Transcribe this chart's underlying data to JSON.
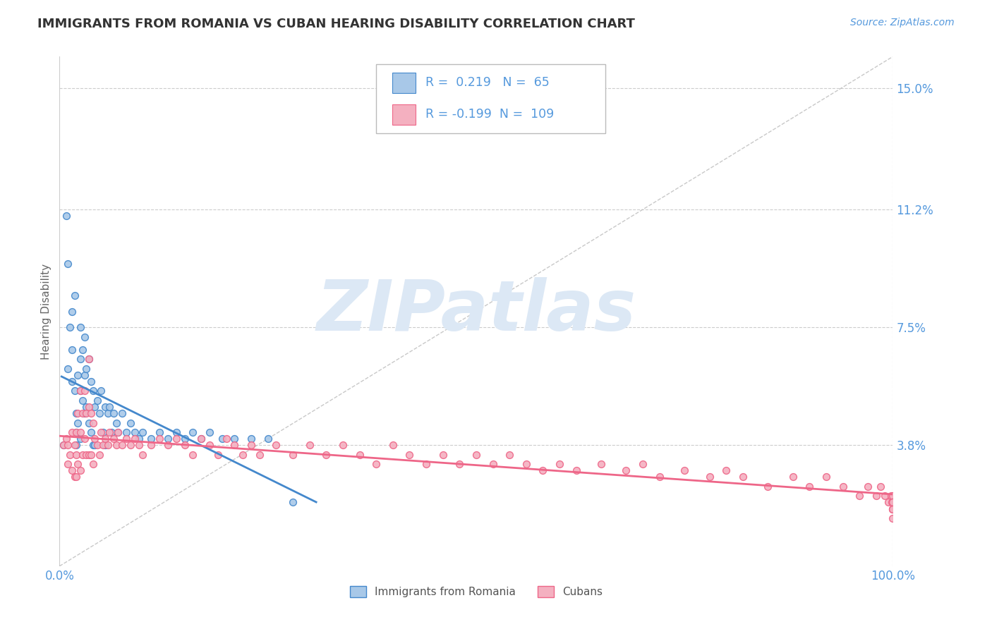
{
  "title": "IMMIGRANTS FROM ROMANIA VS CUBAN HEARING DISABILITY CORRELATION CHART",
  "source_text": "Source: ZipAtlas.com",
  "ylabel": "Hearing Disability",
  "legend_label1": "Immigrants from Romania",
  "legend_label2": "Cubans",
  "R1": 0.219,
  "N1": 65,
  "R2": -0.199,
  "N2": 109,
  "xlim": [
    0.0,
    1.0
  ],
  "ylim": [
    0.0,
    0.16
  ],
  "xticks": [
    0.0,
    1.0
  ],
  "xticklabels": [
    "0.0%",
    "100.0%"
  ],
  "yticks": [
    0.0,
    0.038,
    0.075,
    0.112,
    0.15
  ],
  "yticklabels": [
    "",
    "3.8%",
    "7.5%",
    "11.2%",
    "15.0%"
  ],
  "color1": "#a8c8e8",
  "color2": "#f4b0c0",
  "trendline1_color": "#4488cc",
  "trendline2_color": "#ee6688",
  "scatter1_edge": "#4488cc",
  "scatter2_edge": "#ee6688",
  "background_color": "#ffffff",
  "grid_color": "#cccccc",
  "title_color": "#333333",
  "axis_color": "#5599dd",
  "watermark_color": "#dce8f5",
  "watermark_text": "ZIPatlas",
  "title_fontsize": 13,
  "scatter1_x": [
    0.005,
    0.008,
    0.01,
    0.01,
    0.012,
    0.015,
    0.015,
    0.015,
    0.018,
    0.018,
    0.02,
    0.02,
    0.02,
    0.022,
    0.022,
    0.025,
    0.025,
    0.025,
    0.025,
    0.028,
    0.028,
    0.03,
    0.03,
    0.03,
    0.032,
    0.032,
    0.035,
    0.035,
    0.038,
    0.038,
    0.04,
    0.04,
    0.042,
    0.042,
    0.045,
    0.048,
    0.05,
    0.052,
    0.055,
    0.055,
    0.058,
    0.06,
    0.062,
    0.065,
    0.068,
    0.07,
    0.075,
    0.08,
    0.085,
    0.09,
    0.095,
    0.1,
    0.11,
    0.12,
    0.13,
    0.14,
    0.15,
    0.16,
    0.17,
    0.18,
    0.195,
    0.21,
    0.23,
    0.25,
    0.28
  ],
  "scatter1_y": [
    0.038,
    0.11,
    0.095,
    0.062,
    0.075,
    0.08,
    0.068,
    0.058,
    0.085,
    0.055,
    0.048,
    0.042,
    0.038,
    0.06,
    0.045,
    0.075,
    0.065,
    0.055,
    0.04,
    0.068,
    0.052,
    0.072,
    0.06,
    0.048,
    0.062,
    0.05,
    0.065,
    0.045,
    0.058,
    0.042,
    0.055,
    0.038,
    0.05,
    0.038,
    0.052,
    0.048,
    0.055,
    0.042,
    0.05,
    0.038,
    0.048,
    0.05,
    0.042,
    0.048,
    0.045,
    0.042,
    0.048,
    0.042,
    0.045,
    0.042,
    0.04,
    0.042,
    0.04,
    0.042,
    0.04,
    0.042,
    0.04,
    0.042,
    0.04,
    0.042,
    0.04,
    0.04,
    0.04,
    0.04,
    0.02
  ],
  "scatter2_x": [
    0.005,
    0.008,
    0.01,
    0.01,
    0.012,
    0.015,
    0.015,
    0.018,
    0.018,
    0.02,
    0.02,
    0.02,
    0.022,
    0.022,
    0.025,
    0.025,
    0.025,
    0.028,
    0.028,
    0.03,
    0.03,
    0.032,
    0.032,
    0.035,
    0.035,
    0.035,
    0.038,
    0.038,
    0.04,
    0.04,
    0.042,
    0.045,
    0.048,
    0.05,
    0.052,
    0.055,
    0.058,
    0.06,
    0.065,
    0.068,
    0.07,
    0.075,
    0.08,
    0.085,
    0.09,
    0.095,
    0.1,
    0.11,
    0.12,
    0.13,
    0.14,
    0.15,
    0.16,
    0.17,
    0.18,
    0.19,
    0.2,
    0.21,
    0.22,
    0.23,
    0.24,
    0.26,
    0.28,
    0.3,
    0.32,
    0.34,
    0.36,
    0.38,
    0.4,
    0.42,
    0.44,
    0.46,
    0.48,
    0.5,
    0.52,
    0.54,
    0.56,
    0.58,
    0.6,
    0.62,
    0.65,
    0.68,
    0.7,
    0.72,
    0.75,
    0.78,
    0.8,
    0.82,
    0.85,
    0.88,
    0.9,
    0.92,
    0.94,
    0.96,
    0.97,
    0.98,
    0.985,
    0.99,
    0.995,
    0.998,
    0.999,
    1.0,
    1.0,
    1.0,
    1.0,
    1.0,
    1.0,
    1.0,
    1.0
  ],
  "scatter2_y": [
    0.038,
    0.04,
    0.038,
    0.032,
    0.035,
    0.042,
    0.03,
    0.038,
    0.028,
    0.042,
    0.035,
    0.028,
    0.048,
    0.032,
    0.055,
    0.042,
    0.03,
    0.048,
    0.035,
    0.055,
    0.04,
    0.048,
    0.035,
    0.065,
    0.05,
    0.035,
    0.048,
    0.035,
    0.045,
    0.032,
    0.04,
    0.038,
    0.035,
    0.042,
    0.038,
    0.04,
    0.038,
    0.042,
    0.04,
    0.038,
    0.042,
    0.038,
    0.04,
    0.038,
    0.04,
    0.038,
    0.035,
    0.038,
    0.04,
    0.038,
    0.04,
    0.038,
    0.035,
    0.04,
    0.038,
    0.035,
    0.04,
    0.038,
    0.035,
    0.038,
    0.035,
    0.038,
    0.035,
    0.038,
    0.035,
    0.038,
    0.035,
    0.032,
    0.038,
    0.035,
    0.032,
    0.035,
    0.032,
    0.035,
    0.032,
    0.035,
    0.032,
    0.03,
    0.032,
    0.03,
    0.032,
    0.03,
    0.032,
    0.028,
    0.03,
    0.028,
    0.03,
    0.028,
    0.025,
    0.028,
    0.025,
    0.028,
    0.025,
    0.022,
    0.025,
    0.022,
    0.025,
    0.022,
    0.02,
    0.022,
    0.02,
    0.022,
    0.02,
    0.018,
    0.02,
    0.018,
    0.02,
    0.018,
    0.015
  ]
}
